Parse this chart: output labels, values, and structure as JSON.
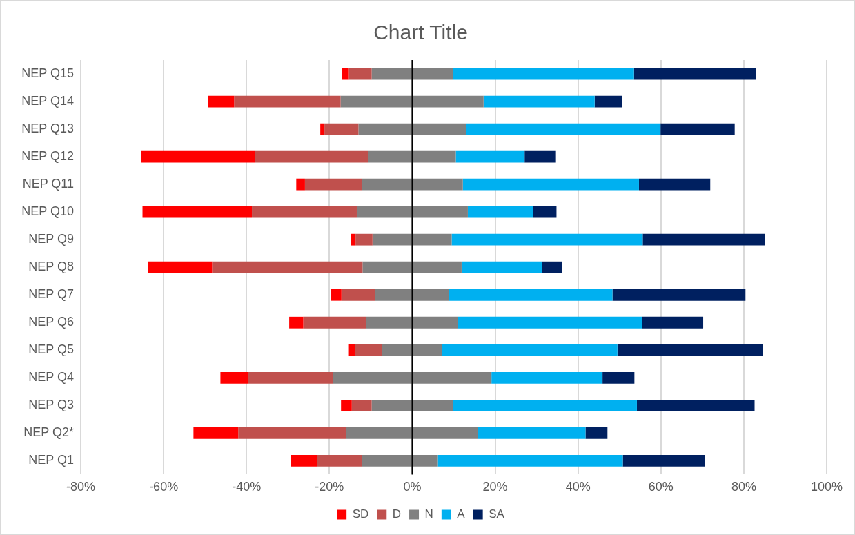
{
  "chart_data": {
    "type": "bar",
    "title": "Chart Title",
    "orientation": "horizontal",
    "categories": [
      "NEP Q15",
      "NEP Q14",
      "NEP Q13",
      "NEP Q12",
      "NEP Q11",
      "NEP Q10",
      "NEP Q9",
      "NEP Q8",
      "NEP Q7",
      "NEP Q6",
      "NEP Q5",
      "NEP Q4",
      "NEP Q3",
      "NEP Q2*",
      "NEP Q1"
    ],
    "series": [
      {
        "name": "SD",
        "color": "#ff0000",
        "base": [
          -16.9,
          -49.3,
          -22.2,
          -65.5,
          -28.0,
          -65.1,
          -14.8,
          -63.7,
          -19.6,
          -29.7,
          -15.3,
          -46.3,
          -17.2,
          -52.8,
          -29.3
        ],
        "values": [
          1.6,
          6.3,
          1.0,
          27.5,
          2.1,
          26.4,
          1.1,
          15.4,
          2.5,
          3.4,
          1.4,
          6.6,
          2.6,
          10.8,
          6.4
        ]
      },
      {
        "name": "D",
        "color": "#c0504d",
        "base": [
          -15.3,
          -43.0,
          -21.2,
          -38.0,
          -25.9,
          -38.7,
          -13.7,
          -48.3,
          -17.1,
          -26.3,
          -13.9,
          -39.7,
          -14.6,
          -42.0,
          -22.9
        ],
        "values": [
          5.5,
          25.7,
          8.2,
          27.4,
          13.8,
          25.3,
          4.1,
          36.3,
          8.1,
          15.2,
          6.6,
          20.5,
          4.8,
          26.1,
          10.8
        ]
      },
      {
        "name": "N",
        "color": "#808080",
        "base": [
          -9.8,
          -17.3,
          -13.0,
          -10.6,
          -12.1,
          -13.4,
          -9.6,
          -12.0,
          -9.0,
          -11.1,
          -7.3,
          -19.2,
          -9.8,
          -15.9,
          -12.1
        ],
        "values": [
          19.6,
          34.5,
          26.0,
          21.1,
          24.3,
          26.8,
          19.1,
          23.9,
          17.9,
          22.1,
          14.5,
          38.3,
          19.6,
          31.7,
          18.1
        ]
      },
      {
        "name": "A",
        "color": "#00b0f0",
        "base": [
          9.8,
          17.2,
          13.0,
          10.5,
          12.2,
          13.4,
          9.5,
          11.9,
          8.9,
          11.0,
          7.2,
          19.1,
          9.8,
          15.8,
          6.0
        ],
        "values": [
          43.7,
          26.8,
          46.9,
          16.6,
          42.5,
          15.8,
          46.1,
          19.4,
          39.4,
          44.4,
          42.3,
          26.8,
          44.4,
          26.0,
          44.8
        ]
      },
      {
        "name": "SA",
        "color": "#002060",
        "base": [
          53.5,
          44.0,
          59.9,
          27.1,
          54.7,
          29.2,
          55.6,
          31.3,
          48.3,
          55.4,
          49.5,
          45.9,
          54.2,
          41.8,
          50.8
        ],
        "values": [
          29.5,
          6.6,
          17.9,
          7.4,
          17.2,
          5.6,
          29.5,
          4.9,
          32.1,
          14.8,
          35.1,
          7.7,
          28.4,
          5.3,
          19.8
        ]
      }
    ],
    "xlim": [
      -80,
      100
    ],
    "xticks": [
      {
        "value": -80,
        "label": "-80%"
      },
      {
        "value": -60,
        "label": "-60%"
      },
      {
        "value": -40,
        "label": "-40%"
      },
      {
        "value": -20,
        "label": "-20%"
      },
      {
        "value": 0,
        "label": "0%"
      },
      {
        "value": 20,
        "label": "20%"
      },
      {
        "value": 40,
        "label": "40%"
      },
      {
        "value": 60,
        "label": "60%"
      },
      {
        "value": 80,
        "label": "80%"
      },
      {
        "value": 100,
        "label": "100%"
      }
    ],
    "ref_lines": [
      {
        "axis": "x",
        "value": 0,
        "color": "#000000"
      }
    ],
    "grid": "x",
    "legend": "bottom"
  }
}
